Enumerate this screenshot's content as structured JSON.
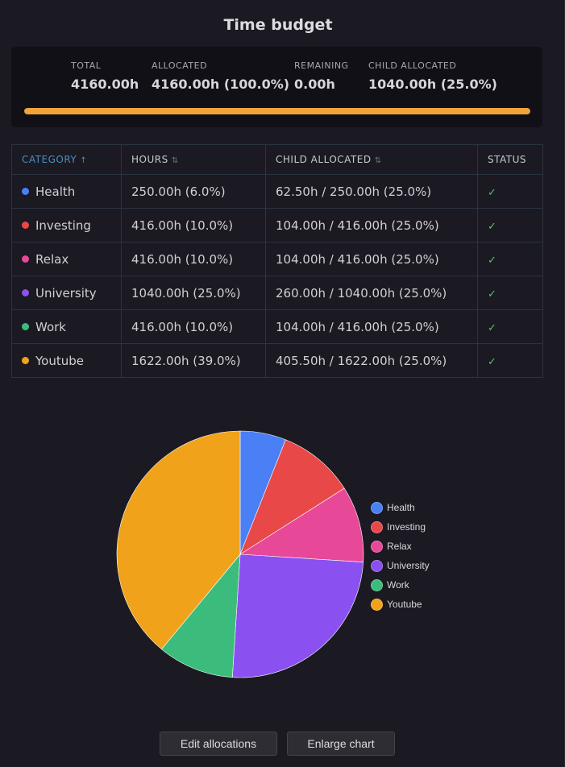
{
  "title": "Time budget",
  "summary": {
    "total_label": "TOTAL",
    "total_value": "4160.00h",
    "allocated_label": "ALLOCATED",
    "allocated_value": "4160.00h (100.0%)",
    "remaining_label": "REMAINING",
    "remaining_value": "0.00h",
    "child_label": "CHILD ALLOCATED",
    "child_value": "1040.00h (25.0%)",
    "progress_fraction": 1.0,
    "progress_color": "#f0a43a"
  },
  "table": {
    "headers": {
      "category": "CATEGORY",
      "hours": "HOURS",
      "child": "CHILD ALLOCATED",
      "status": "STATUS"
    },
    "sort_active_icon": "↑",
    "sort_icon": "⇅",
    "rows": [
      {
        "category": "Health",
        "color": "#4a7ff5",
        "hours": "250.00h (6.0%)",
        "child": "62.50h / 250.00h (25.0%)",
        "status": "✓"
      },
      {
        "category": "Investing",
        "color": "#e84848",
        "hours": "416.00h (10.0%)",
        "child": "104.00h / 416.00h (25.0%)",
        "status": "✓"
      },
      {
        "category": "Relax",
        "color": "#e84898",
        "hours": "416.00h (10.0%)",
        "child": "104.00h / 416.00h (25.0%)",
        "status": "✓"
      },
      {
        "category": "University",
        "color": "#8b50f0",
        "hours": "1040.00h (25.0%)",
        "child": "260.00h / 1040.00h (25.0%)",
        "status": "✓"
      },
      {
        "category": "Work",
        "color": "#3cbc7c",
        "hours": "416.00h (10.0%)",
        "child": "104.00h / 416.00h (25.0%)",
        "status": "✓"
      },
      {
        "category": "Youtube",
        "color": "#f0a21a",
        "hours": "1622.00h (39.0%)",
        "child": "405.50h / 1622.00h (25.0%)",
        "status": "✓"
      }
    ]
  },
  "chart_data": {
    "type": "pie",
    "categories": [
      "Health",
      "Investing",
      "Relax",
      "University",
      "Work",
      "Youtube"
    ],
    "values": [
      250,
      416,
      416,
      1040,
      416,
      1622
    ],
    "colors": [
      "#4a7ff5",
      "#e84848",
      "#e84898",
      "#8b50f0",
      "#3cbc7c",
      "#f0a21a"
    ],
    "legend_position": "right"
  },
  "buttons": {
    "edit": "Edit allocations",
    "enlarge": "Enlarge chart"
  }
}
